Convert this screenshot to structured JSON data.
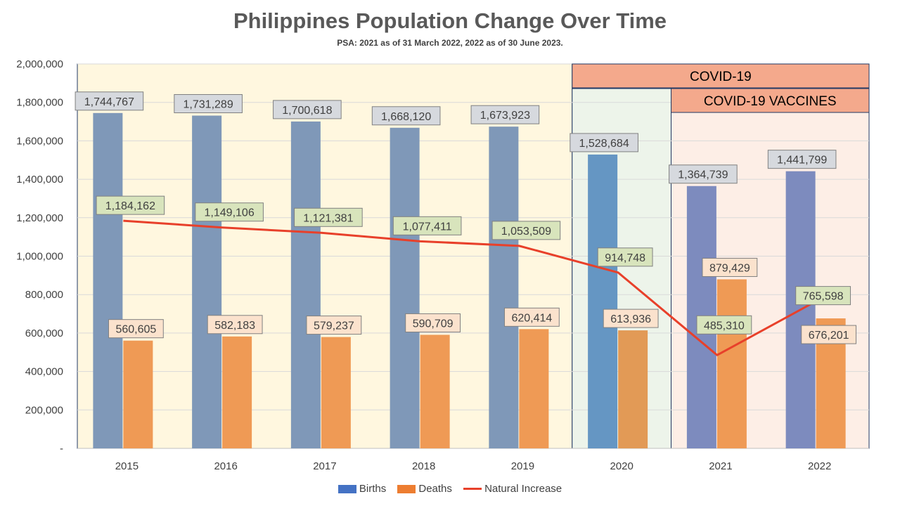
{
  "chart_data": {
    "type": "bar",
    "title": "Philippines Population Change Over Time",
    "subtitle": "PSA: 2021 as of 31 March 2022, 2022 as of 30 June 2023.",
    "categories": [
      "2015",
      "2016",
      "2017",
      "2018",
      "2019",
      "2020",
      "2021",
      "2022"
    ],
    "series": [
      {
        "name": "Births",
        "kind": "bar",
        "color": "#4472C4",
        "values": [
          1744767,
          1731289,
          1700618,
          1668120,
          1673923,
          1528684,
          1364739,
          1441799
        ],
        "labels": [
          "1,744,767",
          "1,731,289",
          "1,700,618",
          "1,668,120",
          "1,673,923",
          "1,528,684",
          "1,364,739",
          "1,441,799"
        ]
      },
      {
        "name": "Deaths",
        "kind": "bar",
        "color": "#ED7D31",
        "values": [
          560605,
          582183,
          579237,
          590709,
          620414,
          613936,
          879429,
          676201
        ],
        "labels": [
          "560,605",
          "582,183",
          "579,237",
          "590,709",
          "620,414",
          "613,936",
          "879,429",
          "676,201"
        ]
      },
      {
        "name": "Natural Increase",
        "kind": "line",
        "color": "#E8402A",
        "values": [
          1184162,
          1149106,
          1121381,
          1077411,
          1053509,
          914748,
          485310,
          765598
        ],
        "labels": [
          "1,184,162",
          "1,149,106",
          "1,121,381",
          "1,077,411",
          "1,053,509",
          "914,748",
          "485,310",
          "765,598"
        ]
      }
    ],
    "ylim": [
      0,
      2000000
    ],
    "yticks": [
      "-",
      "200,000",
      "400,000",
      "600,000",
      "800,000",
      "1,000,000",
      "1,200,000",
      "1,400,000",
      "1,600,000",
      "1,800,000",
      "2,000,000"
    ],
    "grid": true,
    "legend_position": "bottom",
    "annotations": [
      {
        "text": "COVID-19",
        "start": "2020",
        "end": "2022"
      },
      {
        "text": "COVID-19 VACCINES",
        "start": "2021",
        "end": "2022"
      }
    ]
  }
}
